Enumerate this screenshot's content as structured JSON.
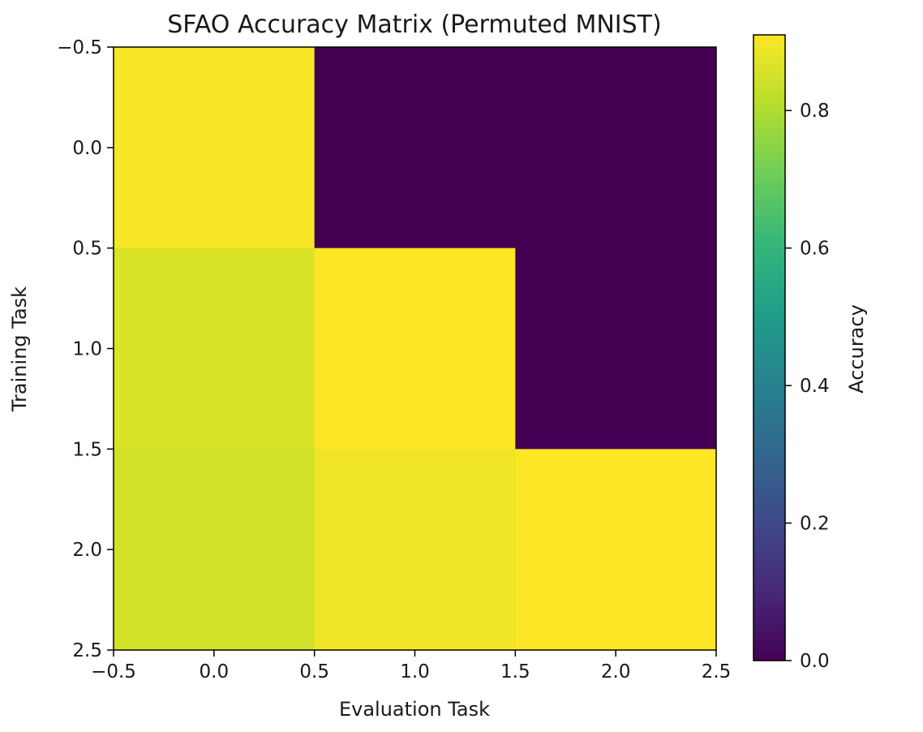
{
  "chart_data": {
    "type": "heatmap",
    "title": "SFAO Accuracy Matrix (Permuted MNIST)",
    "xlabel": "Evaluation Task",
    "ylabel": "Training Task",
    "x_categories": [
      0,
      1,
      2
    ],
    "y_categories": [
      0,
      1,
      2
    ],
    "xlim": [
      -0.5,
      2.5
    ],
    "ylim": [
      2.5,
      -0.5
    ],
    "xticks": [
      "−0.5",
      "0.0",
      "0.5",
      "1.0",
      "1.5",
      "2.0",
      "2.5"
    ],
    "yticks": [
      "−0.5",
      "0.0",
      "0.5",
      "1.0",
      "1.5",
      "2.0",
      "2.5"
    ],
    "matrix": [
      [
        0.9,
        0.0,
        0.0
      ],
      [
        0.86,
        0.91,
        0.0
      ],
      [
        0.85,
        0.89,
        0.91
      ]
    ],
    "colormap": "viridis",
    "colorbar": {
      "label": "Accuracy",
      "vmin": 0.0,
      "vmax": 0.91,
      "ticks": [
        "0.0",
        "0.2",
        "0.4",
        "0.6",
        "0.8"
      ]
    },
    "grid": false
  }
}
